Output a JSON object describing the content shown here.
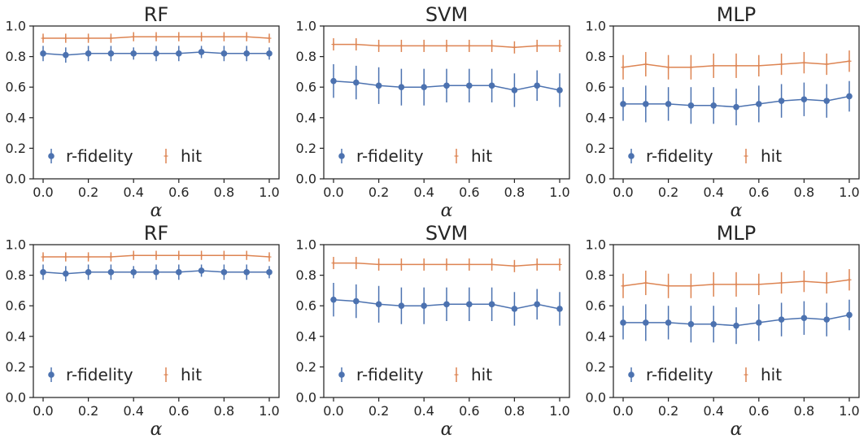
{
  "colors": {
    "r_fidelity": "#4c72b0",
    "hit": "#dd8452",
    "axis": "#262626"
  },
  "chart_data": [
    {
      "type": "line",
      "title": "RF",
      "xlabel": "α",
      "ylabel": "",
      "xlim": [
        0,
        1
      ],
      "ylim": [
        0,
        1
      ],
      "x": [
        0.0,
        0.1,
        0.2,
        0.3,
        0.4,
        0.5,
        0.6,
        0.7,
        0.8,
        0.9,
        1.0
      ],
      "xticks": [
        "0.0",
        "0.2",
        "0.4",
        "0.6",
        "0.8",
        "1.0"
      ],
      "yticks": [
        "0.0",
        "0.2",
        "0.4",
        "0.6",
        "0.8",
        "1.0"
      ],
      "legend": {
        "placement": "lower-left"
      },
      "series": [
        {
          "name": "r-fidelity",
          "marker": "circle",
          "values": [
            0.82,
            0.81,
            0.82,
            0.82,
            0.82,
            0.82,
            0.82,
            0.83,
            0.82,
            0.82,
            0.82
          ],
          "errors": [
            0.05,
            0.05,
            0.05,
            0.05,
            0.04,
            0.05,
            0.05,
            0.04,
            0.05,
            0.05,
            0.04
          ]
        },
        {
          "name": "hit",
          "marker": "plus",
          "values": [
            0.92,
            0.92,
            0.92,
            0.92,
            0.93,
            0.93,
            0.93,
            0.93,
            0.93,
            0.93,
            0.92
          ],
          "errors": [
            0.03,
            0.03,
            0.03,
            0.03,
            0.03,
            0.03,
            0.03,
            0.03,
            0.03,
            0.03,
            0.03
          ]
        }
      ]
    },
    {
      "type": "line",
      "title": "SVM",
      "xlabel": "α",
      "ylabel": "",
      "xlim": [
        0,
        1
      ],
      "ylim": [
        0,
        1
      ],
      "x": [
        0.0,
        0.1,
        0.2,
        0.3,
        0.4,
        0.5,
        0.6,
        0.7,
        0.8,
        0.9,
        1.0
      ],
      "xticks": [
        "0.0",
        "0.2",
        "0.4",
        "0.6",
        "0.8",
        "1.0"
      ],
      "yticks": [
        "0.0",
        "0.2",
        "0.4",
        "0.6",
        "0.8",
        "1.0"
      ],
      "legend": {
        "placement": "lower-left"
      },
      "series": [
        {
          "name": "r-fidelity",
          "marker": "circle",
          "values": [
            0.64,
            0.63,
            0.61,
            0.6,
            0.6,
            0.61,
            0.61,
            0.61,
            0.58,
            0.61,
            0.58
          ],
          "errors": [
            0.11,
            0.11,
            0.12,
            0.12,
            0.12,
            0.11,
            0.11,
            0.11,
            0.11,
            0.1,
            0.11
          ]
        },
        {
          "name": "hit",
          "marker": "plus",
          "values": [
            0.88,
            0.88,
            0.87,
            0.87,
            0.87,
            0.87,
            0.87,
            0.87,
            0.86,
            0.87,
            0.87
          ],
          "errors": [
            0.04,
            0.04,
            0.04,
            0.04,
            0.04,
            0.04,
            0.04,
            0.04,
            0.04,
            0.04,
            0.04
          ]
        }
      ]
    },
    {
      "type": "line",
      "title": "MLP",
      "xlabel": "α",
      "ylabel": "",
      "xlim": [
        0,
        1
      ],
      "ylim": [
        0,
        1
      ],
      "x": [
        0.0,
        0.1,
        0.2,
        0.3,
        0.4,
        0.5,
        0.6,
        0.7,
        0.8,
        0.9,
        1.0
      ],
      "xticks": [
        "0.0",
        "0.2",
        "0.4",
        "0.6",
        "0.8",
        "1.0"
      ],
      "yticks": [
        "0.0",
        "0.2",
        "0.4",
        "0.6",
        "0.8",
        "1.0"
      ],
      "legend": {
        "placement": "lower-left"
      },
      "series": [
        {
          "name": "r-fidelity",
          "marker": "circle",
          "values": [
            0.49,
            0.49,
            0.49,
            0.48,
            0.48,
            0.47,
            0.49,
            0.51,
            0.52,
            0.51,
            0.54
          ],
          "errors": [
            0.11,
            0.12,
            0.11,
            0.12,
            0.12,
            0.12,
            0.12,
            0.11,
            0.11,
            0.11,
            0.1
          ]
        },
        {
          "name": "hit",
          "marker": "plus",
          "values": [
            0.73,
            0.75,
            0.73,
            0.73,
            0.74,
            0.74,
            0.74,
            0.75,
            0.76,
            0.75,
            0.77
          ],
          "errors": [
            0.08,
            0.08,
            0.08,
            0.08,
            0.08,
            0.08,
            0.07,
            0.07,
            0.07,
            0.07,
            0.07
          ]
        }
      ]
    },
    {
      "type": "line",
      "title": "RF",
      "xlabel": "α",
      "ylabel": "",
      "xlim": [
        0,
        1
      ],
      "ylim": [
        0,
        1
      ],
      "x": [
        0.0,
        0.1,
        0.2,
        0.3,
        0.4,
        0.5,
        0.6,
        0.7,
        0.8,
        0.9,
        1.0
      ],
      "xticks": [
        "0.0",
        "0.2",
        "0.4",
        "0.6",
        "0.8",
        "1.0"
      ],
      "yticks": [
        "0.0",
        "0.2",
        "0.4",
        "0.6",
        "0.8",
        "1.0"
      ],
      "legend": {
        "placement": "lower-left"
      },
      "series": [
        {
          "name": "r-fidelity",
          "marker": "circle",
          "values": [
            0.82,
            0.81,
            0.82,
            0.82,
            0.82,
            0.82,
            0.82,
            0.83,
            0.82,
            0.82,
            0.82
          ],
          "errors": [
            0.05,
            0.05,
            0.05,
            0.05,
            0.04,
            0.05,
            0.05,
            0.04,
            0.05,
            0.05,
            0.04
          ]
        },
        {
          "name": "hit",
          "marker": "plus",
          "values": [
            0.92,
            0.92,
            0.92,
            0.92,
            0.93,
            0.93,
            0.93,
            0.93,
            0.93,
            0.93,
            0.92
          ],
          "errors": [
            0.03,
            0.03,
            0.03,
            0.03,
            0.03,
            0.03,
            0.03,
            0.03,
            0.03,
            0.03,
            0.03
          ]
        }
      ]
    },
    {
      "type": "line",
      "title": "SVM",
      "xlabel": "α",
      "ylabel": "",
      "xlim": [
        0,
        1
      ],
      "ylim": [
        0,
        1
      ],
      "x": [
        0.0,
        0.1,
        0.2,
        0.3,
        0.4,
        0.5,
        0.6,
        0.7,
        0.8,
        0.9,
        1.0
      ],
      "xticks": [
        "0.0",
        "0.2",
        "0.4",
        "0.6",
        "0.8",
        "1.0"
      ],
      "yticks": [
        "0.0",
        "0.2",
        "0.4",
        "0.6",
        "0.8",
        "1.0"
      ],
      "legend": {
        "placement": "lower-left"
      },
      "series": [
        {
          "name": "r-fidelity",
          "marker": "circle",
          "values": [
            0.64,
            0.63,
            0.61,
            0.6,
            0.6,
            0.61,
            0.61,
            0.61,
            0.58,
            0.61,
            0.58
          ],
          "errors": [
            0.11,
            0.11,
            0.12,
            0.12,
            0.12,
            0.11,
            0.11,
            0.11,
            0.11,
            0.1,
            0.11
          ]
        },
        {
          "name": "hit",
          "marker": "plus",
          "values": [
            0.88,
            0.88,
            0.87,
            0.87,
            0.87,
            0.87,
            0.87,
            0.87,
            0.86,
            0.87,
            0.87
          ],
          "errors": [
            0.04,
            0.04,
            0.04,
            0.04,
            0.04,
            0.04,
            0.04,
            0.04,
            0.04,
            0.04,
            0.04
          ]
        }
      ]
    },
    {
      "type": "line",
      "title": "MLP",
      "xlabel": "α",
      "ylabel": "",
      "xlim": [
        0,
        1
      ],
      "ylim": [
        0,
        1
      ],
      "x": [
        0.0,
        0.1,
        0.2,
        0.3,
        0.4,
        0.5,
        0.6,
        0.7,
        0.8,
        0.9,
        1.0
      ],
      "xticks": [
        "0.0",
        "0.2",
        "0.4",
        "0.6",
        "0.8",
        "1.0"
      ],
      "yticks": [
        "0.0",
        "0.2",
        "0.4",
        "0.6",
        "0.8",
        "1.0"
      ],
      "legend": {
        "placement": "lower-left"
      },
      "series": [
        {
          "name": "r-fidelity",
          "marker": "circle",
          "values": [
            0.49,
            0.49,
            0.49,
            0.48,
            0.48,
            0.47,
            0.49,
            0.51,
            0.52,
            0.51,
            0.54
          ],
          "errors": [
            0.11,
            0.12,
            0.11,
            0.12,
            0.12,
            0.12,
            0.12,
            0.11,
            0.11,
            0.11,
            0.1
          ]
        },
        {
          "name": "hit",
          "marker": "plus",
          "values": [
            0.73,
            0.75,
            0.73,
            0.73,
            0.74,
            0.74,
            0.74,
            0.75,
            0.76,
            0.75,
            0.77
          ],
          "errors": [
            0.08,
            0.08,
            0.08,
            0.08,
            0.08,
            0.08,
            0.07,
            0.07,
            0.07,
            0.07,
            0.07
          ]
        }
      ]
    }
  ]
}
